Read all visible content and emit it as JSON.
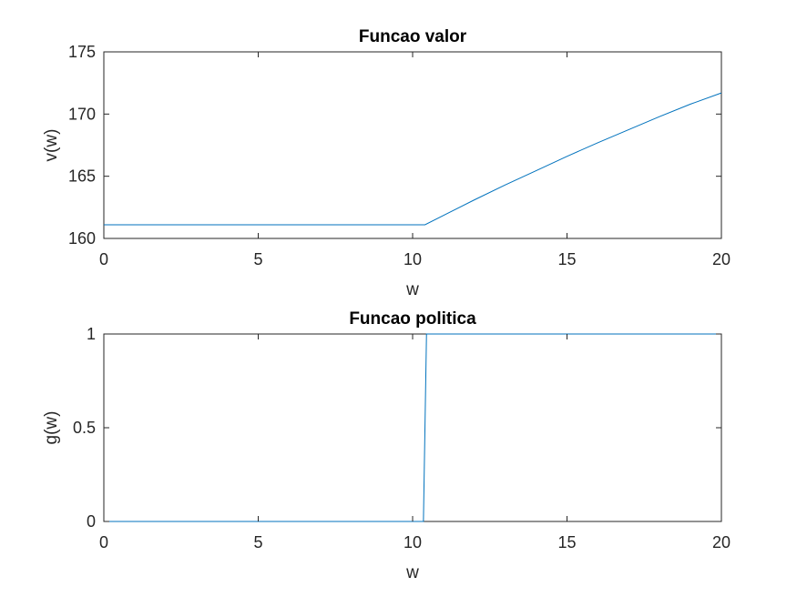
{
  "chart_data": [
    {
      "type": "line",
      "title": "Funcao valor",
      "xlabel": "w",
      "ylabel": "v(w)",
      "xlim": [
        0,
        20
      ],
      "ylim": [
        160,
        175
      ],
      "xticks": [
        0,
        5,
        10,
        15,
        20
      ],
      "yticks": [
        160,
        165,
        170,
        175
      ],
      "grid": false,
      "color": "#0072BD",
      "series": [
        {
          "x": [
            0,
            2,
            4,
            6,
            8,
            10,
            10.4,
            11,
            12,
            13,
            14,
            15,
            16,
            17,
            18,
            19,
            20
          ],
          "values": [
            161.1,
            161.1,
            161.1,
            161.1,
            161.1,
            161.1,
            161.1,
            161.85,
            163.1,
            164.3,
            165.45,
            166.6,
            167.7,
            168.75,
            169.8,
            170.8,
            171.7
          ]
        }
      ]
    },
    {
      "type": "line",
      "title": "Funcao politica",
      "xlabel": "w",
      "ylabel": "g(w)",
      "xlim": [
        0,
        20
      ],
      "ylim": [
        0,
        1
      ],
      "xticks": [
        0,
        5,
        10,
        15,
        20
      ],
      "yticks": [
        0,
        0.5,
        1
      ],
      "grid": false,
      "color": "#0072BD",
      "series": [
        {
          "x": [
            0,
            10.35,
            10.45,
            20
          ],
          "values": [
            0,
            0,
            1,
            1
          ]
        }
      ]
    }
  ]
}
